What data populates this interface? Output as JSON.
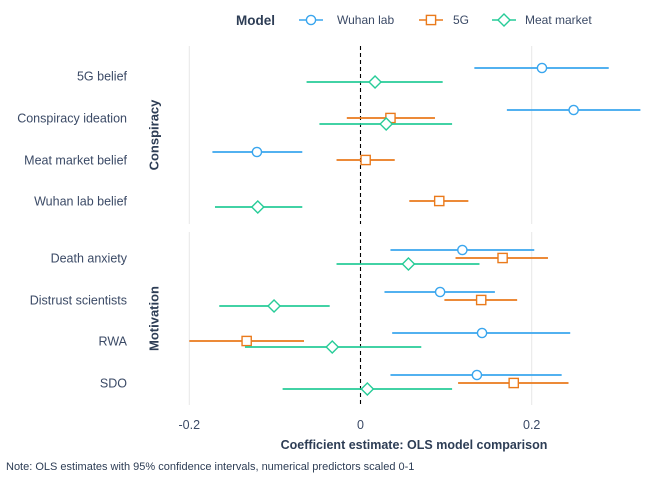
{
  "chart_data": {
    "type": "scatter",
    "subtype": "coefficient-plot",
    "x_title": "Coefficient estimate: OLS model comparison",
    "note": "Note: OLS estimates with 95% confidence intervals, numerical predictors scaled 0-1",
    "xlim": [
      -0.25,
      0.33
    ],
    "x_ticks": [
      -0.2,
      0,
      0.2
    ],
    "x_tick_labels": [
      "-0.2",
      "0",
      "0.2"
    ],
    "reference_line": 0,
    "grid": true,
    "legend": {
      "title": "Model",
      "position": "top",
      "entries": [
        {
          "name": "Wuhan lab",
          "color": "#3aa6ee",
          "shape": "circle"
        },
        {
          "name": "5G",
          "color": "#ea7a1b",
          "shape": "square"
        },
        {
          "name": "Meat market",
          "color": "#27cc98",
          "shape": "diamond"
        }
      ]
    },
    "panels": [
      {
        "name": "Conspiracy",
        "terms": [
          "5G belief",
          "Conspiracy ideation",
          "Meat market belief",
          "Wuhan lab belief"
        ]
      },
      {
        "name": "Motivation",
        "terms": [
          "Death anxiety",
          "Distrust scientists",
          "RWA",
          "SDO"
        ]
      }
    ],
    "series": [
      {
        "name": "Wuhan lab",
        "points": [
          {
            "term": "5G belief",
            "estimate": 0.212,
            "low": 0.133,
            "high": 0.29
          },
          {
            "term": "Conspiracy ideation",
            "estimate": 0.249,
            "low": 0.171,
            "high": 0.327
          },
          {
            "term": "Meat market belief",
            "estimate": -0.121,
            "low": -0.173,
            "high": -0.068
          },
          {
            "term": "Death anxiety",
            "estimate": 0.119,
            "low": 0.035,
            "high": 0.203
          },
          {
            "term": "Distrust scientists",
            "estimate": 0.093,
            "low": 0.028,
            "high": 0.157
          },
          {
            "term": "RWA",
            "estimate": 0.142,
            "low": 0.037,
            "high": 0.245
          },
          {
            "term": "SDO",
            "estimate": 0.136,
            "low": 0.035,
            "high": 0.235
          }
        ]
      },
      {
        "name": "5G",
        "points": [
          {
            "term": "Conspiracy ideation",
            "estimate": 0.035,
            "low": -0.016,
            "high": 0.087
          },
          {
            "term": "Meat market belief",
            "estimate": 0.006,
            "low": -0.028,
            "high": 0.04
          },
          {
            "term": "Wuhan lab belief",
            "estimate": 0.092,
            "low": 0.057,
            "high": 0.126
          },
          {
            "term": "Death anxiety",
            "estimate": 0.166,
            "low": 0.111,
            "high": 0.219
          },
          {
            "term": "Distrust scientists",
            "estimate": 0.141,
            "low": 0.098,
            "high": 0.183
          },
          {
            "term": "RWA",
            "estimate": -0.133,
            "low": -0.2,
            "high": -0.066
          },
          {
            "term": "SDO",
            "estimate": 0.179,
            "low": 0.114,
            "high": 0.243
          }
        ]
      },
      {
        "name": "Meat market",
        "points": [
          {
            "term": "5G belief",
            "estimate": 0.017,
            "low": -0.063,
            "high": 0.096
          },
          {
            "term": "Conspiracy ideation",
            "estimate": 0.03,
            "low": -0.048,
            "high": 0.107
          },
          {
            "term": "Wuhan lab belief",
            "estimate": -0.12,
            "low": -0.17,
            "high": -0.068
          },
          {
            "term": "Death anxiety",
            "estimate": 0.056,
            "low": -0.028,
            "high": 0.139
          },
          {
            "term": "Distrust scientists",
            "estimate": -0.101,
            "low": -0.165,
            "high": -0.036
          },
          {
            "term": "RWA",
            "estimate": -0.033,
            "low": -0.135,
            "high": 0.071
          },
          {
            "term": "SDO",
            "estimate": 0.008,
            "low": -0.091,
            "high": 0.107
          }
        ]
      }
    ]
  }
}
